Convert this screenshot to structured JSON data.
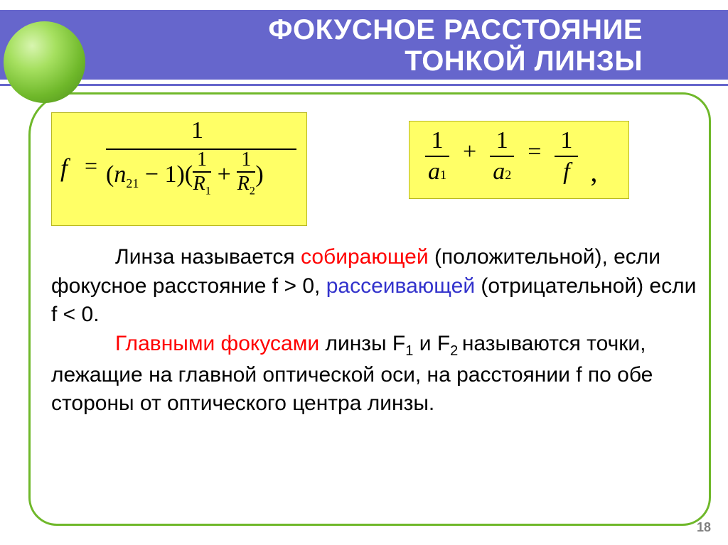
{
  "title": {
    "line1": "ФОКУСНОЕ РАССТОЯНИЕ",
    "line2": "ТОНКОЙ ЛИНЗЫ"
  },
  "formula1": {
    "lhs_var": "f",
    "eq": "=",
    "numerator": "1",
    "denom_prefix_open": "(",
    "denom_n": "n",
    "denom_n_sub": "21",
    "denom_minus1": " − 1)(",
    "frac_a_top": "1",
    "frac_a_bot_var": "R",
    "frac_a_bot_sub": "1",
    "plus": " + ",
    "frac_b_top": "1",
    "frac_b_bot_var": "R",
    "frac_b_bot_sub": "2",
    "denom_close": ")"
  },
  "formula2": {
    "f1_top": "1",
    "f1_bot_var": "a",
    "f1_bot_sub": "1",
    "plus": "+",
    "f2_top": "1",
    "f2_bot_var": "a",
    "f2_bot_sub": "2",
    "eq": "=",
    "f3_top": "1",
    "f3_bot_var": "f",
    "comma": ","
  },
  "body": {
    "p1_a": "Линза называется ",
    "p1_b": "собирающей",
    "p1_c": " (положительной), если фокусное расстояние  f > 0, ",
    "p1_d": "рассеивающей",
    "p1_e": " (отрицательной) если f < 0.",
    "p2_a": "Главными фокусами",
    "p2_b": " линзы F",
    "p2_sub1": "1",
    "p2_c": " и F",
    "p2_sub2": "2 ",
    "p2_d": "называются точки, лежащие на главной оптической оси, на расстоянии f по обе стороны от оптического центра линзы."
  },
  "page_number": "18",
  "colors": {
    "band": "#6666cc",
    "frame": "#6fb82a",
    "formula_bg": "#ffff66",
    "red": "#ff0000",
    "blue": "#3333cc"
  }
}
